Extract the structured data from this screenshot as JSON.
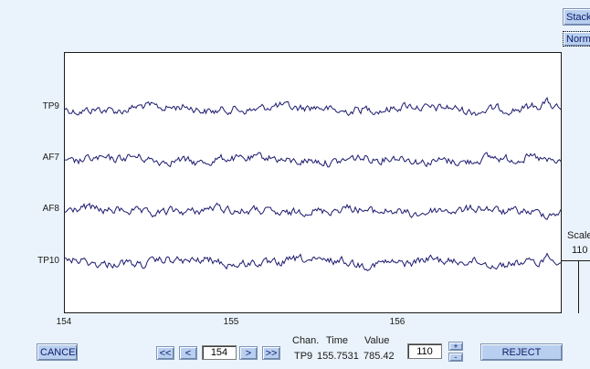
{
  "top_buttons": {
    "stack_label": "Stack",
    "norm_label": "Norm"
  },
  "plot": {
    "channels": [
      "TP9",
      "AF7",
      "AF8",
      "TP10"
    ],
    "x_ticks": [
      "154",
      "155",
      "156"
    ],
    "trace_color": "#1c1a6e"
  },
  "scale": {
    "label": "Scale",
    "value": "110"
  },
  "controls": {
    "cancel_label": "CANCEL",
    "first_label": "<<",
    "prev_label": "<",
    "page_value": "154",
    "next_label": ">",
    "last_label": ">>",
    "readout": {
      "chan_header": "Chan.",
      "time_header": "Time",
      "value_header": "Value",
      "chan": "TP9",
      "time": "155.7531",
      "value": "785.42"
    },
    "scale_value": "110",
    "plus_label": "+",
    "minus_label": "-",
    "reject_label": "REJECT"
  }
}
